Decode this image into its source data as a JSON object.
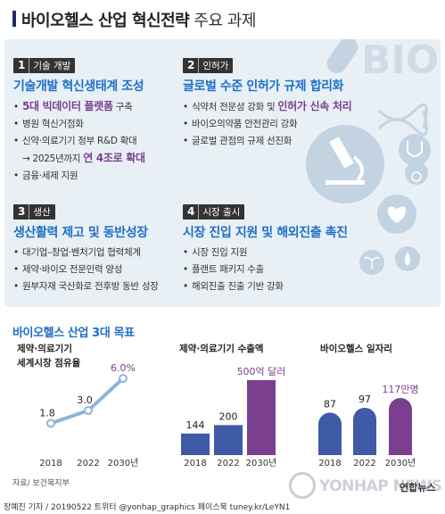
{
  "header": {
    "title_bold": "바이오헬스 산업 혁신전략",
    "title_light": " 주요 과제"
  },
  "deco": {
    "bio_text": "BIO"
  },
  "sections": [
    {
      "num": "1",
      "tag": "기술 개발",
      "title": "기술개발 혁신생태계 조성",
      "items": [
        {
          "text": "구축",
          "hl": "5대 빅데이터 플랫폼"
        },
        {
          "text": "병원 혁신거점화"
        },
        {
          "text": "신약·의료기기 정부 R&D 확대"
        },
        {
          "text": "→ 2025년까지 ",
          "hl": "연 4조로 확대",
          "arrow": true
        },
        {
          "text": "금융·세제 지원"
        }
      ]
    },
    {
      "num": "2",
      "tag": "인허가",
      "title": "글로벌 수준 인허가 규제 합리화",
      "items": [
        {
          "text": "식약처 전문성 강화 및 ",
          "hl": "인허가 신속 처리"
        },
        {
          "text": "바이오의약품 안전관리 강화"
        },
        {
          "text": "글로벌 관점의 규제 선진화"
        }
      ]
    },
    {
      "num": "3",
      "tag": "생산",
      "title": "생산활력 제고 및 동반성장",
      "items": [
        {
          "text": "대기업–창업·벤처기업 협력체계"
        },
        {
          "text": "제약·바이오 전문인력 양성"
        },
        {
          "text": "원부자재 국산화로 전후방 동반 성장"
        }
      ]
    },
    {
      "num": "4",
      "tag": "시장 출시",
      "title": "시장 진입 지원 및 해외진출 촉진",
      "items": [
        {
          "text": "시장 진입 지원"
        },
        {
          "text": "플랜트 패키지 수출"
        },
        {
          "text": "해외진출 진출 기반 강화"
        }
      ]
    }
  ],
  "goals_title": "바이오헬스 산업 3대 목표",
  "chart_data": [
    {
      "type": "line",
      "title": "제약·의료기기 세계시장 점유율",
      "title_lines": [
        "제약·의료기기",
        "세계시장 점유율"
      ],
      "categories": [
        "2018",
        "2022",
        "2030년"
      ],
      "values": [
        1.8,
        3.0,
        6.0
      ],
      "value_labels": [
        "1.8",
        "3.0",
        "6.0%"
      ]
    },
    {
      "type": "bar",
      "title": "제약·의료기기 수출액",
      "categories": [
        "2018",
        "2022",
        "2030년"
      ],
      "values": [
        144,
        200,
        500
      ],
      "value_labels": [
        "144",
        "200",
        "500억 달러"
      ],
      "colors": [
        "#3f5aa6",
        "#3f5aa6",
        "#7a3f8e"
      ]
    },
    {
      "type": "bar",
      "title": "바이오헬스 일자리",
      "categories": [
        "2018",
        "2022",
        "2030년"
      ],
      "values": [
        87,
        97,
        117
      ],
      "value_labels": [
        "87",
        "97",
        "117만명"
      ],
      "colors": [
        "#3f5aa6",
        "#3f5aa6",
        "#7a3f8e"
      ]
    }
  ],
  "source": "자료/ 보건복지부",
  "credit": "장예진 기자 / 20190522  트위터 @yonhap_graphics  페이스북 tuney.kr/LeYN1",
  "logo": {
    "text": "YONHAP NEWS",
    "sub": "연합뉴스"
  }
}
